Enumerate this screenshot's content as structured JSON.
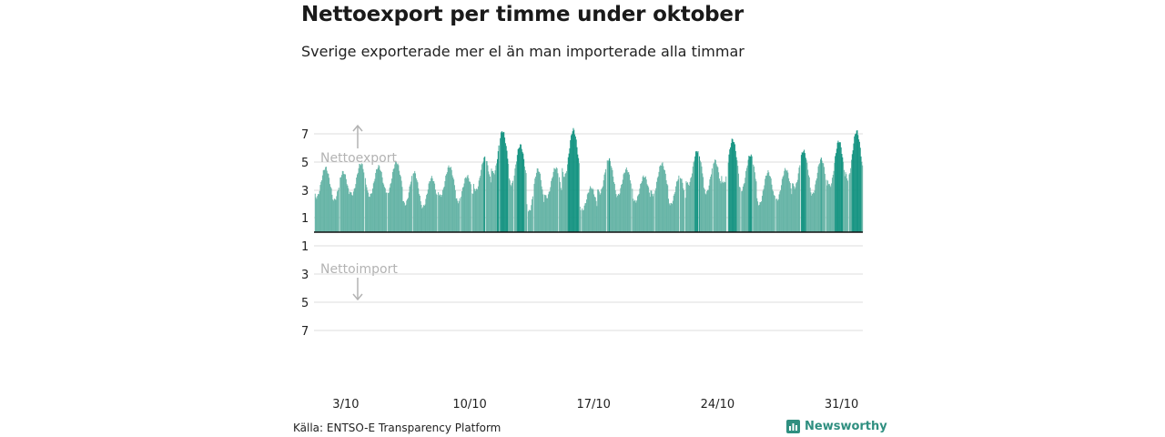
{
  "header": {
    "title": "Nettoexport per timme under oktober",
    "subtitle": "Sverige exporterade mer el än man importerade alla timmar"
  },
  "footer": {
    "source": "Källa: ENTSO-E Transparency Platform",
    "brand": "Newsworthy",
    "brand_icon": "bar-chart-logo-icon"
  },
  "colors": {
    "bar_light": "#66b4a6",
    "bar_dark": "#169482",
    "baseline": "#111111",
    "grid": "#dddddd",
    "annotation": "#b3b3b3",
    "brand": "#2f8f80"
  },
  "chart_data": {
    "type": "bar",
    "unit": "per timme",
    "x_range": [
      "2023-10-01",
      "2023-10-31"
    ],
    "x_ticks": [
      {
        "date": "2023-10-03",
        "label": "3/10"
      },
      {
        "date": "2023-10-10",
        "label": "10/10"
      },
      {
        "date": "2023-10-17",
        "label": "17/10"
      },
      {
        "date": "2023-10-24",
        "label": "24/10"
      },
      {
        "date": "2023-10-31",
        "label": "31/10"
      }
    ],
    "y_range": [
      -7,
      7
    ],
    "y_ticks": [
      {
        "value": 7,
        "label": "7"
      },
      {
        "value": 5,
        "label": "5"
      },
      {
        "value": 3,
        "label": "3"
      },
      {
        "value": 1,
        "label": "1"
      },
      {
        "value": -1,
        "label": "1"
      },
      {
        "value": -3,
        "label": "3"
      },
      {
        "value": -5,
        "label": "5"
      },
      {
        "value": -7,
        "label": "7"
      }
    ],
    "annotations": {
      "positive": "Nettoexport",
      "negative": "Nettoimport"
    },
    "grid": true,
    "hourly_profile": [
      {
        "date": "2023-10-01",
        "min": 2.5,
        "max": 4.6
      },
      {
        "date": "2023-10-02",
        "min": 2.3,
        "max": 4.3
      },
      {
        "date": "2023-10-03",
        "min": 2.7,
        "max": 4.9
      },
      {
        "date": "2023-10-04",
        "min": 2.6,
        "max": 4.7
      },
      {
        "date": "2023-10-05",
        "min": 2.8,
        "max": 5.0
      },
      {
        "date": "2023-10-06",
        "min": 2.0,
        "max": 4.3
      },
      {
        "date": "2023-10-07",
        "min": 1.8,
        "max": 3.9
      },
      {
        "date": "2023-10-08",
        "min": 2.6,
        "max": 4.7
      },
      {
        "date": "2023-10-09",
        "min": 2.2,
        "max": 4.0
      },
      {
        "date": "2023-10-10",
        "min": 3.0,
        "max": 5.3
      },
      {
        "date": "2023-10-11",
        "min": 4.2,
        "max": 7.2
      },
      {
        "date": "2023-10-12",
        "min": 3.4,
        "max": 6.2
      },
      {
        "date": "2023-10-13",
        "min": 1.5,
        "max": 4.5
      },
      {
        "date": "2023-10-14",
        "min": 2.5,
        "max": 4.6
      },
      {
        "date": "2023-10-15",
        "min": 4.0,
        "max": 7.3
      },
      {
        "date": "2023-10-16",
        "min": 1.6,
        "max": 3.2
      },
      {
        "date": "2023-10-17",
        "min": 2.8,
        "max": 5.2
      },
      {
        "date": "2023-10-18",
        "min": 2.6,
        "max": 4.5
      },
      {
        "date": "2023-10-19",
        "min": 2.2,
        "max": 4.0
      },
      {
        "date": "2023-10-20",
        "min": 2.7,
        "max": 4.9
      },
      {
        "date": "2023-10-21",
        "min": 2.0,
        "max": 4.0
      },
      {
        "date": "2023-10-22",
        "min": 3.4,
        "max": 5.8
      },
      {
        "date": "2023-10-23",
        "min": 2.8,
        "max": 5.1
      },
      {
        "date": "2023-10-24",
        "min": 3.5,
        "max": 6.6
      },
      {
        "date": "2023-10-25",
        "min": 3.0,
        "max": 5.5
      },
      {
        "date": "2023-10-26",
        "min": 2.0,
        "max": 4.3
      },
      {
        "date": "2023-10-27",
        "min": 2.3,
        "max": 4.5
      },
      {
        "date": "2023-10-28",
        "min": 3.2,
        "max": 5.8
      },
      {
        "date": "2023-10-29",
        "min": 2.7,
        "max": 5.2
      },
      {
        "date": "2023-10-30",
        "min": 3.3,
        "max": 6.5
      },
      {
        "date": "2023-10-31",
        "min": 3.8,
        "max": 7.2
      }
    ]
  }
}
